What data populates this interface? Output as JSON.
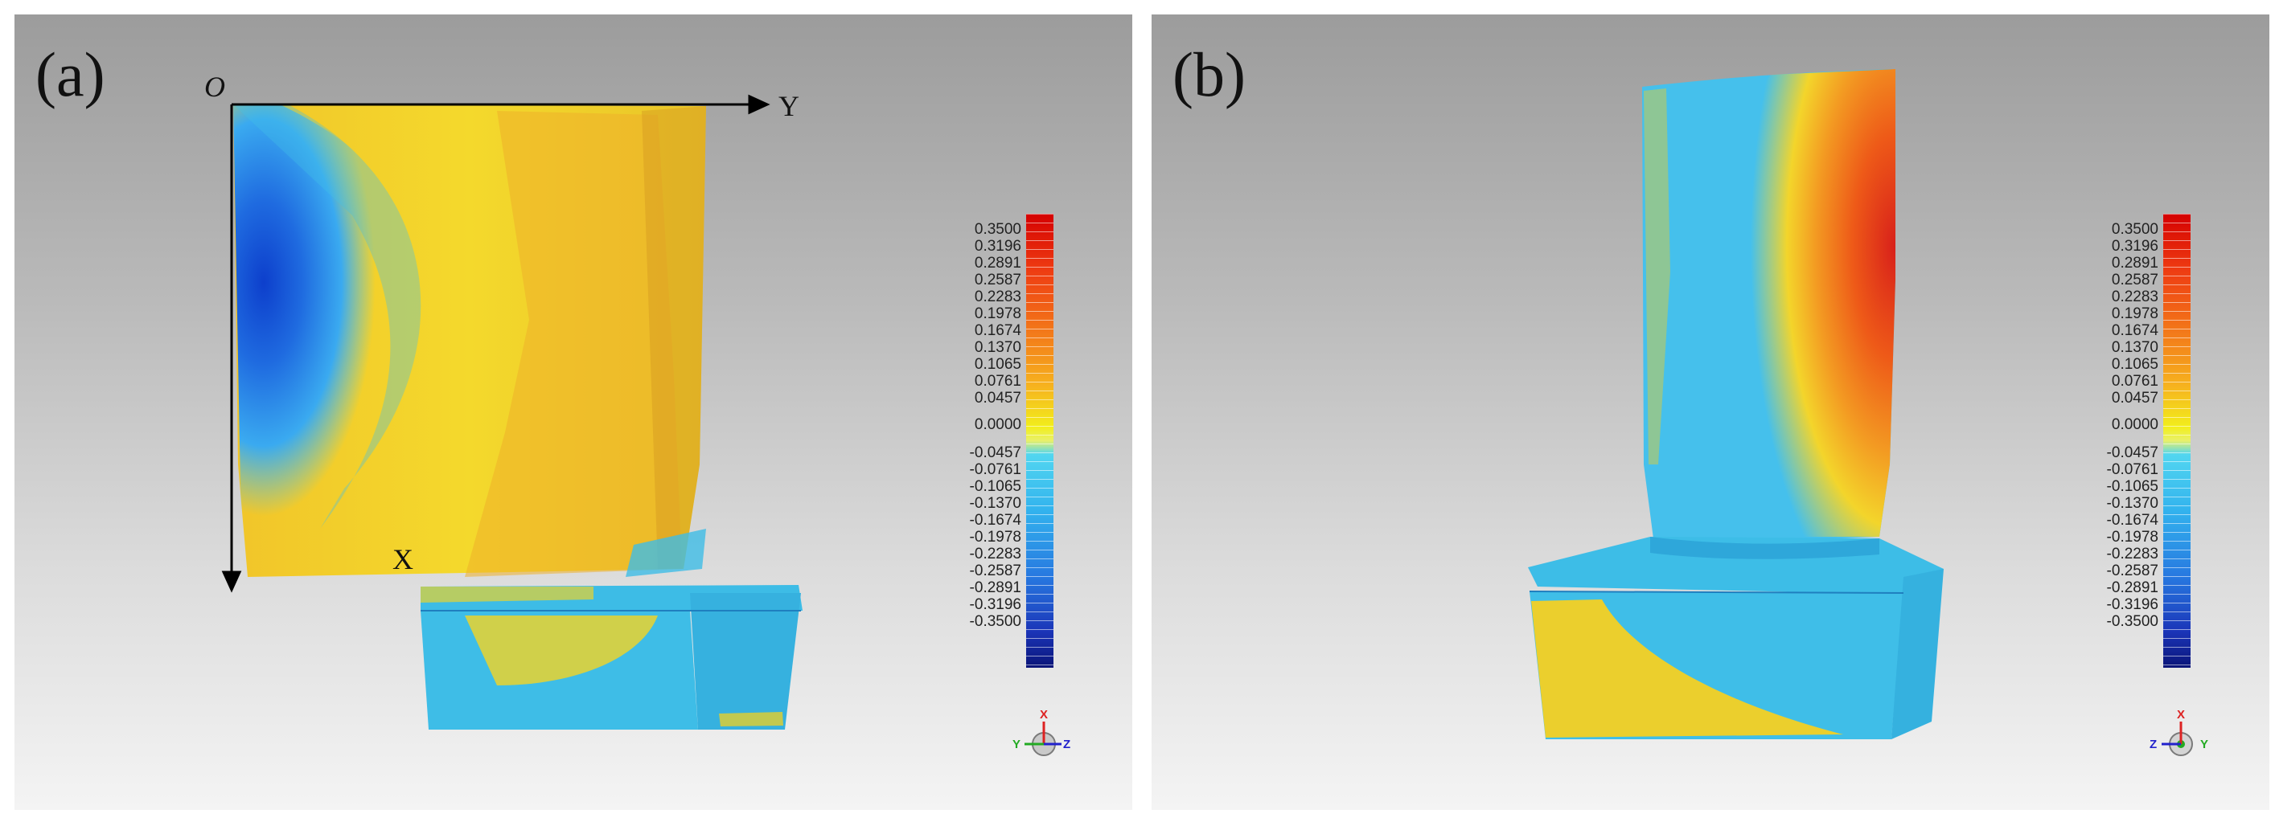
{
  "panels": [
    {
      "label": "(a)",
      "axes": {
        "origin": "O",
        "x_label": "X",
        "y_label": "Y"
      },
      "triad": {
        "up": "X",
        "left": "Y",
        "right": "Z"
      }
    },
    {
      "label": "(b)",
      "triad": {
        "up": "X",
        "left": "Z",
        "right": "Y"
      }
    }
  ],
  "colorbar": {
    "ticks": [
      "0.3500",
      "0.3196",
      "0.2891",
      "0.2587",
      "0.2283",
      "0.1978",
      "0.1674",
      "0.1370",
      "0.1065",
      "0.0761",
      "0.0457",
      "0.0000",
      "-0.0457",
      "-0.0761",
      "-0.1065",
      "-0.1370",
      "-0.1674",
      "-0.1978",
      "-0.2283",
      "-0.2587",
      "-0.2891",
      "-0.3196",
      "-0.3500"
    ],
    "colors": {
      "max": "#d40000",
      "mid_positive": "#f2ee1c",
      "zero": "#52d6f0",
      "mid_negative": "#2778e0",
      "min": "#0a1478"
    }
  }
}
